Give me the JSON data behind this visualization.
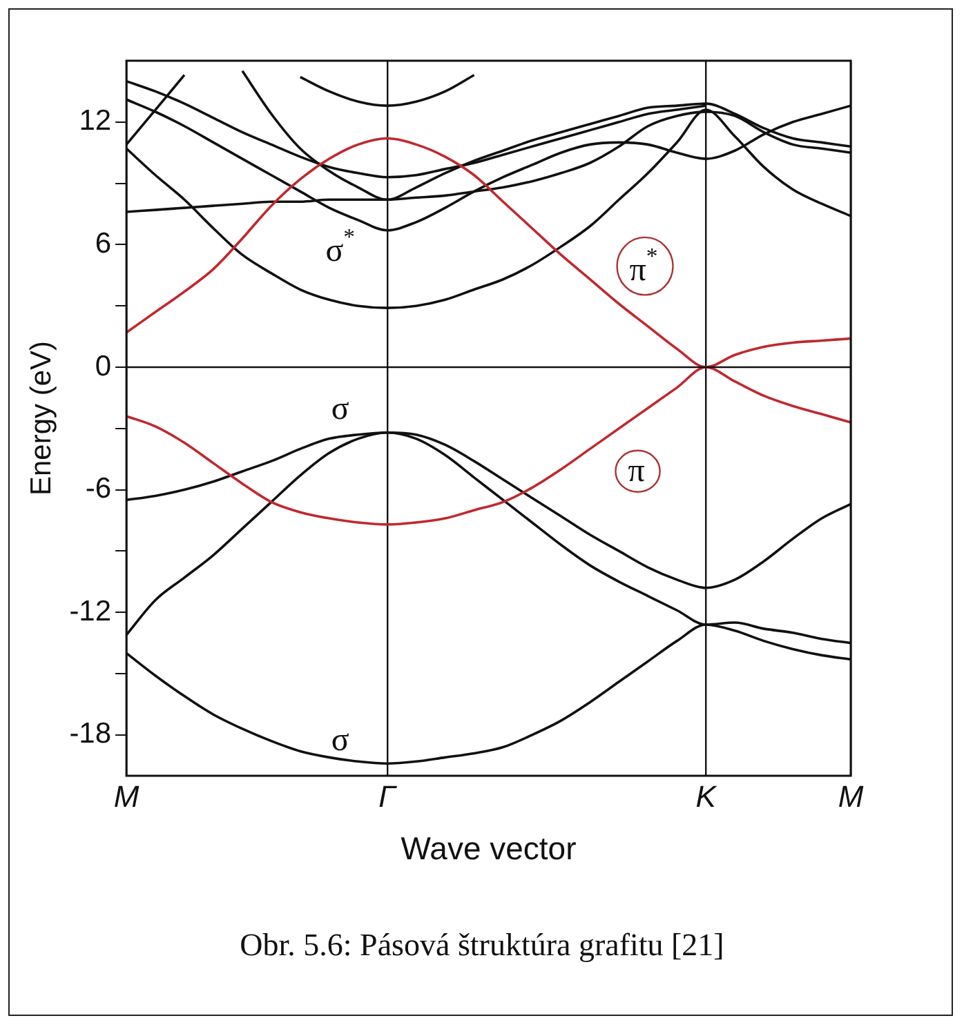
{
  "chart_data": {
    "type": "line",
    "xlabel": "Wave vector",
    "ylabel": "Energy (eV)",
    "categories": [
      "M",
      null,
      null,
      null,
      null,
      null,
      null,
      null,
      null,
      "Γ",
      null,
      null,
      null,
      null,
      null,
      null,
      null,
      null,
      null,
      null,
      "K",
      null,
      null,
      null,
      null,
      "M"
    ],
    "ylim": [
      -20,
      15
    ],
    "yticks": [
      -18,
      {
        "value": -15,
        "label": null
      },
      -12,
      {
        "value": -9,
        "label": null
      },
      -6,
      {
        "value": -3,
        "label": null
      },
      0,
      {
        "value": 3,
        "label": null
      },
      6,
      {
        "value": 9,
        "label": null
      },
      12
    ],
    "grid": "x",
    "legend": false,
    "marker": "none",
    "line_style": "solid",
    "ref_lines": [
      {
        "axis": "y",
        "value": 0,
        "color": "#111111"
      }
    ],
    "series": [
      {
        "color": "#c0282d",
        "values": [
          1.7,
          2.7,
          3.7,
          4.8,
          6.3,
          7.9,
          9.2,
          10.2,
          10.9,
          11.2,
          10.9,
          10.3,
          9.4,
          8.1,
          6.8,
          5.5,
          4.3,
          3.1,
          2.0,
          0.9,
          0,
          0.6,
          1.0,
          1.2,
          1.3,
          1.4
        ]
      },
      {
        "color": "#c0282d",
        "values": [
          -2.4,
          -2.9,
          -3.7,
          -4.7,
          -5.7,
          -6.6,
          -7.1,
          -7.4,
          -7.6,
          -7.7,
          -7.6,
          -7.4,
          -7.0,
          -6.6,
          -5.9,
          -5.0,
          -4.0,
          -3.0,
          -2.0,
          -1.0,
          0,
          -0.7,
          -1.4,
          -1.9,
          -2.3,
          -2.7
        ]
      },
      {
        "color": "#111111",
        "values": [
          -6.5,
          -6.3,
          -6.0,
          -5.6,
          -5.1,
          -4.6,
          -4.0,
          -3.5,
          -3.3,
          -3.2,
          -3.3,
          -3.8,
          -4.6,
          -5.5,
          -6.4,
          -7.3,
          -8.2,
          -9.0,
          -9.8,
          -10.4,
          -10.8,
          -10.4,
          -9.5,
          -8.4,
          -7.4,
          -6.7
        ]
      },
      {
        "color": "#111111",
        "values": [
          -13.1,
          -11.4,
          -10.3,
          -9.2,
          -7.9,
          -6.6,
          -5.3,
          -4.2,
          -3.5,
          -3.2,
          -3.5,
          -4.3,
          -5.4,
          -6.5,
          -7.6,
          -8.7,
          -9.7,
          -10.5,
          -11.2,
          -11.9,
          -12.6,
          -12.5,
          -12.8,
          -13.0,
          -13.3,
          -13.5
        ]
      },
      {
        "color": "#111111",
        "values": [
          -14.0,
          -15.1,
          -16.1,
          -17.0,
          -17.7,
          -18.3,
          -18.8,
          -19.1,
          -19.3,
          -19.4,
          -19.3,
          -19.1,
          -18.9,
          -18.6,
          -18.0,
          -17.3,
          -16.4,
          -15.4,
          -14.4,
          -13.4,
          -12.6,
          -12.9,
          -13.4,
          -13.8,
          -14.1,
          -14.3
        ]
      },
      {
        "color": "#111111",
        "values": [
          7.6,
          7.7,
          7.8,
          7.9,
          8.0,
          8.1,
          8.1,
          8.2,
          8.2,
          8.2,
          8.3,
          8.4,
          8.6,
          8.8,
          9.1,
          9.5,
          10.0,
          10.8,
          11.8,
          12.3,
          12.5,
          12.3,
          11.5,
          10.9,
          10.7,
          10.5
        ]
      },
      {
        "color": "#111111",
        "values": [
          null,
          null,
          null,
          null,
          14.5,
          12.4,
          10.7,
          9.6,
          8.8,
          8.2,
          8.8,
          9.5,
          10.1,
          10.6,
          11.1,
          11.5,
          11.9,
          12.3,
          12.7,
          12.8,
          12.9,
          12.4,
          11.7,
          11.2,
          11.0,
          10.8
        ]
      },
      {
        "color": "#111111",
        "values": [
          13.1,
          12.5,
          11.8,
          11.0,
          10.2,
          9.4,
          8.6,
          7.8,
          7.2,
          6.7,
          7.1,
          7.8,
          8.6,
          9.3,
          9.9,
          10.5,
          10.9,
          11.0,
          10.9,
          10.5,
          10.2,
          10.6,
          11.4,
          12.0,
          12.4,
          12.8
        ]
      },
      {
        "color": "#111111",
        "values": [
          10.7,
          9.4,
          8.2,
          6.8,
          5.5,
          4.6,
          3.8,
          3.3,
          3.0,
          2.9,
          3.0,
          3.3,
          3.8,
          4.3,
          5.0,
          5.9,
          6.9,
          8.2,
          9.5,
          11.0,
          12.6,
          11.3,
          9.8,
          8.7,
          8.0,
          7.4
        ]
      },
      {
        "color": "#111111",
        "values": [
          14.0,
          13.5,
          12.9,
          12.2,
          11.5,
          10.9,
          10.3,
          9.8,
          9.5,
          9.3,
          9.4,
          9.7,
          10.0,
          10.4,
          10.8,
          11.2,
          11.6,
          12.0,
          12.4,
          12.6,
          12.8,
          null,
          null,
          null,
          null,
          null
        ]
      },
      {
        "color": "#111111",
        "values": [
          10.9,
          12.6,
          14.3,
          null,
          null,
          null,
          null,
          null,
          null,
          null,
          null,
          null,
          null,
          null,
          null,
          null,
          null,
          null,
          null,
          null,
          null,
          null,
          null,
          null,
          null,
          null
        ]
      },
      {
        "color": "#111111",
        "values": [
          null,
          null,
          null,
          null,
          null,
          null,
          14.2,
          13.5,
          13.0,
          12.8,
          13.0,
          13.5,
          14.3,
          null,
          null,
          null,
          null,
          null,
          null,
          null,
          null,
          null,
          null,
          null,
          null,
          null
        ]
      }
    ],
    "annotations": [
      {
        "text": "σ$^{*}$",
        "x": "Γ",
        "y": 6.7
      },
      {
        "text": "σ",
        "x": "Γ",
        "y": -3.2
      },
      {
        "text": "σ",
        "x": "Γ",
        "y": -19.4
      },
      "π$^{*}$",
      "π",
      "Obr. 5.6: Pásová štruktúra grafitu [21]"
    ]
  }
}
